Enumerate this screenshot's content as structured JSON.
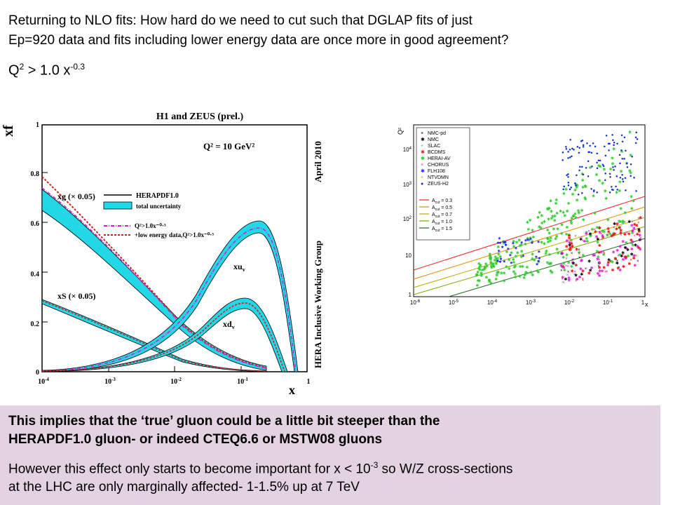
{
  "slide": {
    "intro_line1": "Returning to NLO fits: How hard do we need to cut such that DGLAP fits of just",
    "intro_line2": "Ep=920 data and fits including lower energy data are once more in good agreement?",
    "cut_q": "Q",
    "cut_q_exp": "2",
    "cut_rest": " > 1.0 x",
    "cut_x_exp": "-0.3"
  },
  "left_plot": {
    "title": "H1 and ZEUS (prel.)",
    "scale_label": "Q² = 10 GeV²",
    "ylabel": "xf",
    "xlabel": "x",
    "side_label_top": "April 2010",
    "side_label_bottom": "HERA Inclusive Working Group",
    "legend": {
      "herapdf": "HERAPDF1.0",
      "uncertainty": "total uncertainty",
      "cut_fit": "Q²>1.0x⁻⁰·³",
      "low_energy_fit": "+low energy data,Q²>1.0x⁻⁰·³"
    },
    "labels": {
      "xg": "xg (× 0.05)",
      "xS": "xS (× 0.05)",
      "xuv": "xu",
      "xdv": "xd",
      "sub_v": "v"
    },
    "yticks": [
      "0",
      "0.2",
      "0.4",
      "0.6",
      "0.8",
      "1"
    ],
    "xticks": [
      "10",
      "10",
      "10",
      "10",
      "1"
    ],
    "xtick_exps": [
      "-4",
      "-3",
      "-2",
      "-1",
      ""
    ],
    "colors": {
      "band": "#22d8e6",
      "cut_line": "#cc22cc",
      "low_line": "#cc2222"
    }
  },
  "right_plot": {
    "ylabel": "Q²",
    "xlabel": "x",
    "yticks": [
      "1",
      "10",
      "10",
      "10",
      "10"
    ],
    "ytick_exps": [
      "",
      "",
      "2",
      "3",
      "4"
    ],
    "xticks": [
      "10",
      "10",
      "10",
      "10",
      "10",
      "10",
      "1"
    ],
    "xtick_exps": [
      "-6",
      "-5",
      "-4",
      "-3",
      "-2",
      "-1",
      ""
    ],
    "legend_data": [
      {
        "name": "NMC-pd",
        "color": "#000000",
        "sym": "×"
      },
      {
        "name": "NMC",
        "color": "#000000",
        "sym": "✱"
      },
      {
        "name": "SLAC",
        "color": "#33aaff",
        "sym": "+"
      },
      {
        "name": "BCDMS",
        "color": "#ee1111",
        "sym": "✱"
      },
      {
        "name": "HERAI-AV",
        "color": "#22cc22",
        "sym": "✱"
      },
      {
        "name": "CHORUS",
        "color": "#dd22dd",
        "sym": "×"
      },
      {
        "name": "FLH108",
        "color": "#2222ee",
        "sym": "✱"
      },
      {
        "name": "NTVDMN",
        "color": "#ff8800",
        "sym": "+"
      },
      {
        "name": "ZEUS-H2",
        "color": "#1133cc",
        "sym": "●"
      }
    ],
    "legend_cuts": [
      {
        "name": "A",
        "sub": "cut",
        "val": " = 0.3",
        "color": "#ee2222"
      },
      {
        "name": "A",
        "sub": "cut",
        "val": " = 0.5",
        "color": "#ee8800"
      },
      {
        "name": "A",
        "sub": "cut",
        "val": " = 0.7",
        "color": "#bbaa00"
      },
      {
        "name": "A",
        "sub": "cut",
        "val": " = 1.0",
        "color": "#77aa00"
      },
      {
        "name": "A",
        "sub": "cut",
        "val": " = 1.5",
        "color": "#226622"
      }
    ]
  },
  "summary": {
    "line1": "This implies that the ‘true’ gluon could be  a little bit steeper than the",
    "line2": "HERAPDF1.0 gluon- or indeed CTEQ6.6 or MSTW08 gluons",
    "line3a": "However this effect only starts to become important for x < 10",
    "line3_exp": "-3",
    "line3b": " so W/Z cross-sections",
    "line4": "at the LHC are only marginally affected- 1-1.5% up at 7 TeV"
  }
}
